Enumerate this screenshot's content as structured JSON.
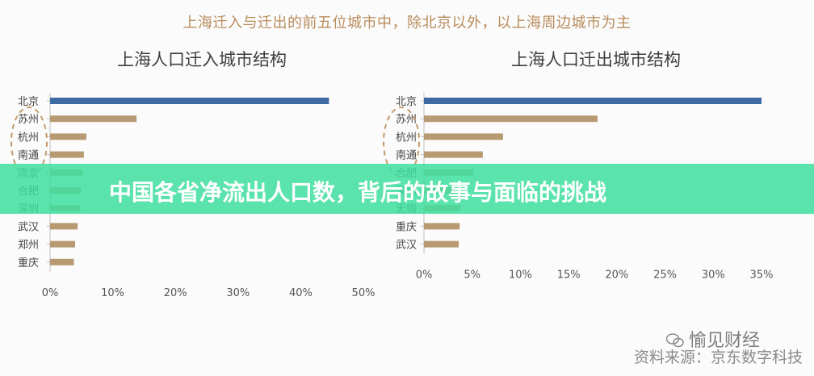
{
  "heading": "上海迁入与迁出的前五位城市中，除北京以外，以上海周边城市为主",
  "banner": "中国各省净流出人口数，背后的故事与面临的挑战",
  "watermark": "愉见财经",
  "source": "资料来源：京东数字科技",
  "colors": {
    "primary": "#3d6aa3",
    "bars": "#b79a72",
    "highlight": "#c49a6c",
    "banner": "#40dea0"
  },
  "chart_data": [
    {
      "type": "bar",
      "title": "上海人口迁入城市结构",
      "categories": [
        "北京",
        "苏州",
        "杭州",
        "南通",
        "南京",
        "合肥",
        "深圳",
        "武汉",
        "郑州",
        "重庆"
      ],
      "values": [
        44.5,
        13.8,
        5.8,
        5.4,
        5.2,
        4.9,
        4.8,
        4.4,
        4.0,
        3.8
      ],
      "xlim": [
        0,
        50
      ],
      "xticks": [
        "0%",
        "10%",
        "20%",
        "30%",
        "40%",
        "50%"
      ],
      "orientation": "horizontal"
    },
    {
      "type": "bar",
      "title": "上海人口迁出城市结构",
      "categories": [
        "北京",
        "苏州",
        "杭州",
        "南通",
        "合肥",
        "深圳",
        "无锡",
        "重庆",
        "武汉"
      ],
      "values": [
        35.0,
        18.0,
        8.2,
        6.1,
        5.1,
        4.2,
        3.8,
        3.7,
        3.6
      ],
      "xlim": [
        0,
        35
      ],
      "xticks": [
        "0%",
        "5%",
        "10%",
        "15%",
        "20%",
        "25%",
        "30%",
        "35%"
      ],
      "orientation": "horizontal"
    }
  ]
}
